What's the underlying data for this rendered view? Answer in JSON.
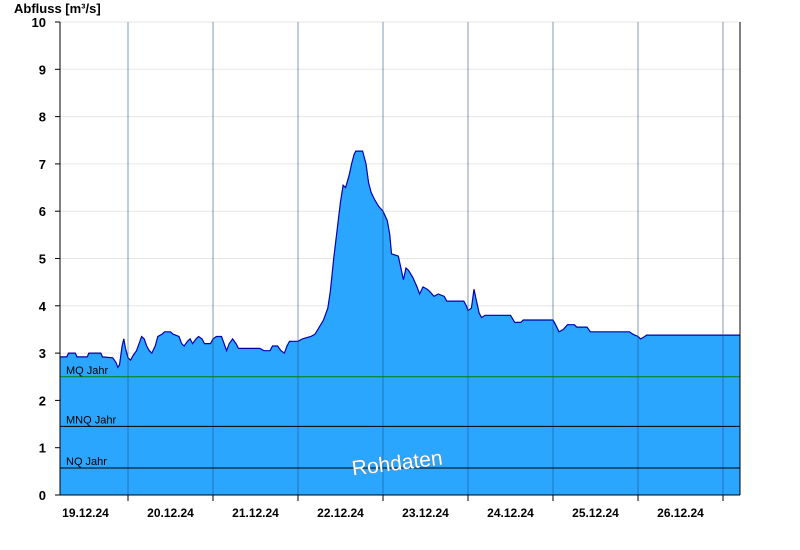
{
  "chart_data": {
    "type": "area",
    "ylabel": "Abfluss [m³/s]",
    "ylim": [
      0,
      10
    ],
    "y_ticks": [
      0,
      1,
      2,
      3,
      4,
      5,
      6,
      7,
      8,
      9,
      10
    ],
    "x_days": [
      "19.12.24",
      "20.12.24",
      "21.12.24",
      "22.12.24",
      "23.12.24",
      "24.12.24",
      "25.12.24",
      "26.12.24"
    ],
    "xlim_days": [
      0.2,
      8.2
    ],
    "grid": true,
    "watermark": "Rohdaten",
    "colors": {
      "fill": "#2ba6ff",
      "line": "#0000b0",
      "mq": "#008000",
      "ref": "#000000"
    },
    "reference_lines": [
      {
        "label": "MQ Jahr",
        "value": 2.5,
        "color": "#008000"
      },
      {
        "label": "MNQ Jahr",
        "value": 1.45,
        "color": "#000000"
      },
      {
        "label": "NQ Jahr",
        "value": 0.57,
        "color": "#000000"
      }
    ],
    "series": [
      {
        "points": [
          [
            0.2,
            2.92
          ],
          [
            0.28,
            2.92
          ],
          [
            0.3,
            3.0
          ],
          [
            0.38,
            3.0
          ],
          [
            0.4,
            2.92
          ],
          [
            0.52,
            2.92
          ],
          [
            0.54,
            3.0
          ],
          [
            0.68,
            3.0
          ],
          [
            0.7,
            2.92
          ],
          [
            0.82,
            2.9
          ],
          [
            0.86,
            2.8
          ],
          [
            0.88,
            2.7
          ],
          [
            0.9,
            2.75
          ],
          [
            0.93,
            3.15
          ],
          [
            0.95,
            3.3
          ],
          [
            0.97,
            3.1
          ],
          [
            1.0,
            2.9
          ],
          [
            1.03,
            2.85
          ],
          [
            1.06,
            2.95
          ],
          [
            1.1,
            3.05
          ],
          [
            1.13,
            3.2
          ],
          [
            1.16,
            3.35
          ],
          [
            1.19,
            3.3
          ],
          [
            1.22,
            3.15
          ],
          [
            1.25,
            3.05
          ],
          [
            1.28,
            3.0
          ],
          [
            1.32,
            3.15
          ],
          [
            1.35,
            3.35
          ],
          [
            1.4,
            3.4
          ],
          [
            1.43,
            3.45
          ],
          [
            1.5,
            3.45
          ],
          [
            1.53,
            3.4
          ],
          [
            1.6,
            3.35
          ],
          [
            1.63,
            3.2
          ],
          [
            1.66,
            3.15
          ],
          [
            1.7,
            3.25
          ],
          [
            1.73,
            3.3
          ],
          [
            1.76,
            3.2
          ],
          [
            1.8,
            3.3
          ],
          [
            1.83,
            3.35
          ],
          [
            1.87,
            3.3
          ],
          [
            1.9,
            3.2
          ],
          [
            1.97,
            3.2
          ],
          [
            2.0,
            3.3
          ],
          [
            2.04,
            3.35
          ],
          [
            2.1,
            3.35
          ],
          [
            2.13,
            3.2
          ],
          [
            2.16,
            3.05
          ],
          [
            2.19,
            3.2
          ],
          [
            2.23,
            3.3
          ],
          [
            2.27,
            3.2
          ],
          [
            2.3,
            3.1
          ],
          [
            2.55,
            3.1
          ],
          [
            2.6,
            3.05
          ],
          [
            2.67,
            3.05
          ],
          [
            2.7,
            3.15
          ],
          [
            2.76,
            3.15
          ],
          [
            2.8,
            3.05
          ],
          [
            2.84,
            3.0
          ],
          [
            2.87,
            3.15
          ],
          [
            2.9,
            3.25
          ],
          [
            3.0,
            3.25
          ],
          [
            3.05,
            3.3
          ],
          [
            3.15,
            3.35
          ],
          [
            3.2,
            3.4
          ],
          [
            3.25,
            3.55
          ],
          [
            3.3,
            3.7
          ],
          [
            3.35,
            3.95
          ],
          [
            3.38,
            4.3
          ],
          [
            3.42,
            5.0
          ],
          [
            3.46,
            5.6
          ],
          [
            3.5,
            6.2
          ],
          [
            3.53,
            6.55
          ],
          [
            3.56,
            6.5
          ],
          [
            3.6,
            6.75
          ],
          [
            3.63,
            7.0
          ],
          [
            3.66,
            7.2
          ],
          [
            3.68,
            7.27
          ],
          [
            3.76,
            7.27
          ],
          [
            3.8,
            7.0
          ],
          [
            3.83,
            6.6
          ],
          [
            3.86,
            6.4
          ],
          [
            3.9,
            6.25
          ],
          [
            3.95,
            6.1
          ],
          [
            4.0,
            6.0
          ],
          [
            4.05,
            5.8
          ],
          [
            4.08,
            5.5
          ],
          [
            4.1,
            5.1
          ],
          [
            4.18,
            5.05
          ],
          [
            4.21,
            4.8
          ],
          [
            4.24,
            4.55
          ],
          [
            4.27,
            4.8
          ],
          [
            4.3,
            4.75
          ],
          [
            4.35,
            4.6
          ],
          [
            4.4,
            4.4
          ],
          [
            4.43,
            4.25
          ],
          [
            4.47,
            4.4
          ],
          [
            4.52,
            4.35
          ],
          [
            4.55,
            4.3
          ],
          [
            4.6,
            4.2
          ],
          [
            4.65,
            4.25
          ],
          [
            4.72,
            4.2
          ],
          [
            4.75,
            4.1
          ],
          [
            4.95,
            4.1
          ],
          [
            4.98,
            4.0
          ],
          [
            5.0,
            3.9
          ],
          [
            5.04,
            3.95
          ],
          [
            5.07,
            4.35
          ],
          [
            5.1,
            4.1
          ],
          [
            5.13,
            3.85
          ],
          [
            5.16,
            3.75
          ],
          [
            5.2,
            3.8
          ],
          [
            5.5,
            3.8
          ],
          [
            5.55,
            3.65
          ],
          [
            5.62,
            3.65
          ],
          [
            5.65,
            3.7
          ],
          [
            6.0,
            3.7
          ],
          [
            6.03,
            3.6
          ],
          [
            6.07,
            3.45
          ],
          [
            6.12,
            3.5
          ],
          [
            6.17,
            3.6
          ],
          [
            6.25,
            3.6
          ],
          [
            6.28,
            3.55
          ],
          [
            6.4,
            3.55
          ],
          [
            6.44,
            3.45
          ],
          [
            6.9,
            3.45
          ],
          [
            6.94,
            3.4
          ],
          [
            7.0,
            3.35
          ],
          [
            7.03,
            3.3
          ],
          [
            7.08,
            3.35
          ],
          [
            7.1,
            3.38
          ],
          [
            8.2,
            3.38
          ]
        ]
      }
    ]
  }
}
